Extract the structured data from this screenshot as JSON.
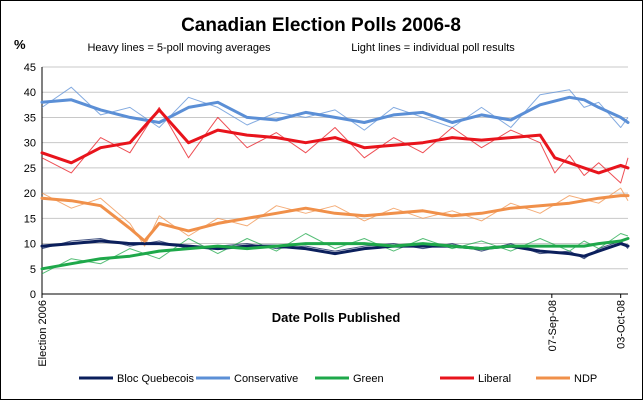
{
  "chart_data": {
    "type": "line",
    "title": "Canadian Election Polls  2006-8",
    "subtitle_left": "Heavy lines = 5-poll moving averages",
    "subtitle_right": "Light lines = individual poll results",
    "ylabel": "%",
    "xlabel": "Date Polls Published",
    "ylim": [
      0,
      45
    ],
    "y_ticks": [
      0,
      5,
      10,
      15,
      20,
      25,
      30,
      35,
      40,
      45
    ],
    "grid": "horizontal",
    "x_range": [
      0,
      400
    ],
    "x_ticks": [
      {
        "x": 0,
        "label": "Election 2006"
      },
      {
        "x": 348,
        "label": "07-Sep-08"
      },
      {
        "x": 395,
        "label": "03-Oct-08"
      }
    ],
    "legend_position": "bottom",
    "series": [
      {
        "name": "Bloc Quebecois",
        "color": "#0b1f5c",
        "x": [
          0,
          20,
          40,
          60,
          80,
          100,
          120,
          140,
          160,
          180,
          200,
          220,
          240,
          260,
          280,
          300,
          320,
          340,
          360,
          370,
          380,
          395,
          400
        ],
        "moving_average": [
          9.5,
          10.0,
          10.5,
          10.0,
          10.0,
          9.5,
          9.0,
          9.5,
          9.5,
          9.0,
          8.0,
          9.0,
          9.5,
          9.5,
          9.5,
          9.0,
          9.5,
          8.5,
          8.0,
          7.5,
          8.5,
          10.0,
          9.5
        ],
        "polls": [
          9.0,
          10.5,
          11.0,
          9.5,
          10.5,
          9.0,
          9.5,
          10.0,
          9.0,
          9.5,
          8.5,
          9.5,
          10.0,
          9.0,
          10.0,
          8.5,
          10.0,
          8.0,
          8.5,
          7.0,
          9.0,
          10.5,
          9.0
        ]
      },
      {
        "name": "Conservative",
        "color": "#5b8fd6",
        "x": [
          0,
          20,
          40,
          60,
          80,
          100,
          120,
          140,
          160,
          180,
          200,
          220,
          240,
          260,
          280,
          300,
          320,
          340,
          360,
          370,
          380,
          395,
          400
        ],
        "moving_average": [
          38.0,
          38.5,
          36.5,
          35.0,
          34.0,
          37.0,
          38.0,
          35.0,
          34.5,
          36.0,
          35.0,
          34.0,
          35.5,
          36.0,
          34.0,
          35.5,
          34.5,
          37.5,
          39.0,
          38.5,
          37.0,
          35.0,
          34.0
        ],
        "polls": [
          37.0,
          41.0,
          35.5,
          37.0,
          33.0,
          39.0,
          37.0,
          33.5,
          36.0,
          35.0,
          36.5,
          32.5,
          37.0,
          35.0,
          33.0,
          37.0,
          33.0,
          39.5,
          40.5,
          37.0,
          38.0,
          33.0,
          35.0
        ]
      },
      {
        "name": "Green",
        "color": "#1ea84a",
        "x": [
          0,
          20,
          40,
          60,
          80,
          100,
          120,
          140,
          160,
          180,
          200,
          220,
          240,
          260,
          280,
          300,
          320,
          340,
          360,
          370,
          380,
          395,
          400
        ],
        "moving_average": [
          5.0,
          6.0,
          7.0,
          7.5,
          8.5,
          9.0,
          9.5,
          9.0,
          9.5,
          10.0,
          10.0,
          10.0,
          9.5,
          10.0,
          9.5,
          9.0,
          9.5,
          9.5,
          9.5,
          9.5,
          10.0,
          10.5,
          11.0
        ],
        "polls": [
          4.0,
          7.0,
          6.0,
          9.0,
          7.0,
          11.0,
          8.0,
          11.0,
          8.5,
          12.0,
          9.0,
          11.0,
          8.5,
          11.0,
          9.0,
          10.5,
          8.5,
          11.0,
          8.5,
          10.5,
          9.0,
          12.0,
          11.5
        ]
      },
      {
        "name": "Liberal",
        "color": "#e8141c",
        "x": [
          0,
          20,
          40,
          60,
          80,
          100,
          120,
          140,
          160,
          180,
          200,
          220,
          240,
          260,
          280,
          300,
          320,
          340,
          350,
          360,
          370,
          380,
          395,
          400
        ],
        "moving_average": [
          28.0,
          26.0,
          29.0,
          30.0,
          36.5,
          30.0,
          32.5,
          31.5,
          31.0,
          30.0,
          31.0,
          29.0,
          29.5,
          30.0,
          31.0,
          30.5,
          31.0,
          31.5,
          27.0,
          26.0,
          25.0,
          24.0,
          25.5,
          25.0
        ],
        "polls": [
          27.0,
          24.0,
          31.0,
          28.0,
          37.0,
          27.0,
          35.0,
          29.0,
          32.0,
          28.0,
          33.0,
          27.0,
          31.0,
          28.0,
          33.0,
          29.0,
          32.5,
          30.0,
          24.0,
          27.5,
          23.5,
          26.0,
          22.0,
          27.0
        ]
      },
      {
        "name": "NDP",
        "color": "#f0904a",
        "x": [
          0,
          20,
          40,
          60,
          70,
          80,
          100,
          120,
          140,
          160,
          180,
          200,
          220,
          240,
          260,
          280,
          300,
          320,
          340,
          360,
          380,
          395,
          400
        ],
        "moving_average": [
          19.0,
          18.5,
          17.5,
          13.0,
          10.5,
          14.0,
          12.5,
          14.0,
          15.0,
          16.0,
          17.0,
          16.0,
          15.5,
          16.0,
          16.5,
          15.5,
          16.0,
          17.0,
          17.5,
          18.0,
          19.0,
          19.5,
          19.5
        ],
        "polls": [
          20.0,
          17.0,
          19.0,
          14.0,
          9.5,
          15.5,
          11.5,
          15.0,
          13.5,
          17.5,
          16.0,
          17.5,
          14.5,
          17.0,
          15.0,
          16.5,
          14.5,
          18.0,
          16.0,
          19.5,
          18.0,
          21.0,
          18.5
        ]
      }
    ]
  }
}
